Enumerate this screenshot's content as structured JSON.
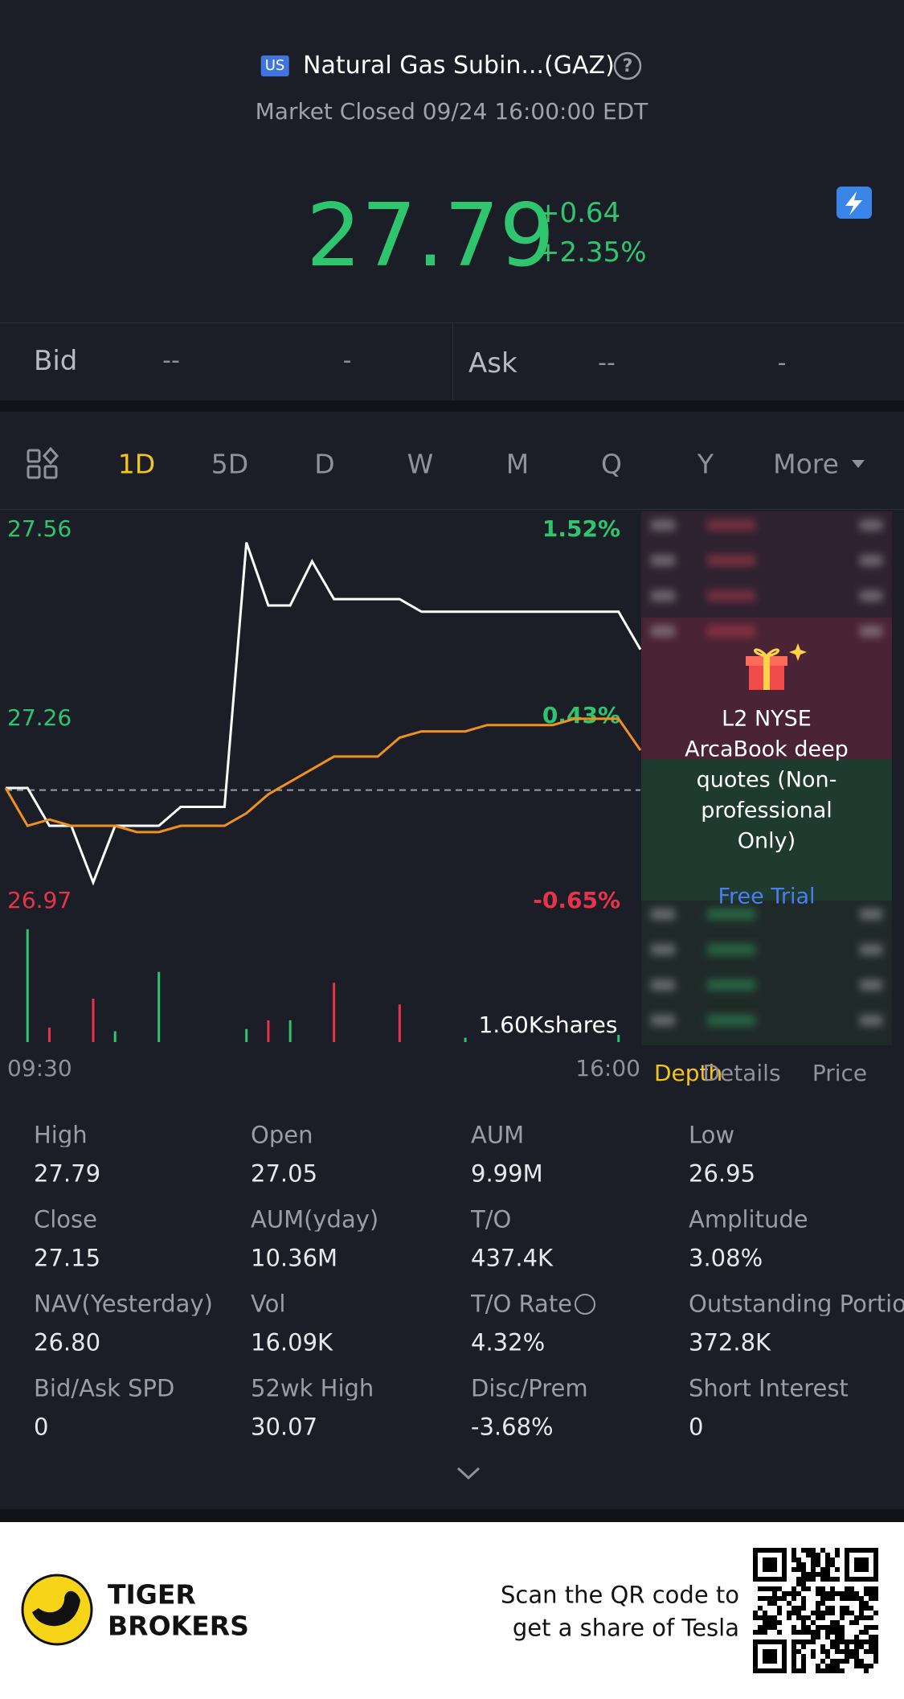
{
  "header": {
    "badge": "US",
    "title": "Natural Gas Subin...(GAZ)",
    "help": "?",
    "status": "Market Closed 09/24 16:00:00 EDT"
  },
  "quote": {
    "price": "27.79",
    "change": "+0.64",
    "change_pct": "+2.35%"
  },
  "bid_ask": {
    "bid_label": "Bid",
    "bid_price": "--",
    "bid_size": "-",
    "ask_label": "Ask",
    "ask_price": "--",
    "ask_size": "-"
  },
  "periods": [
    "1D",
    "5D",
    "D",
    "W",
    "M",
    "Q",
    "Y",
    "More"
  ],
  "active_period": 0,
  "chart_data": {
    "type": "line",
    "x_labels": [
      "09:30",
      "16:00"
    ],
    "ylim": [
      26.97,
      27.56
    ],
    "yticks": [
      27.56,
      27.26,
      26.97
    ],
    "y2lim": [
      -0.65,
      1.52
    ],
    "y2ticks": [
      {
        "value": 1.52,
        "label": "1.52%"
      },
      {
        "value": 0.43,
        "label": "0.43%"
      },
      {
        "value": -0.65,
        "label": "-0.65%"
      }
    ],
    "series": [
      {
        "color": "#ffffff",
        "values": [
          27.15,
          27.15,
          27.09,
          27.09,
          27.0,
          27.09,
          27.09,
          27.09,
          27.12,
          27.12,
          27.12,
          27.54,
          27.44,
          27.44,
          27.51,
          27.45,
          27.45,
          27.45,
          27.45,
          27.43,
          27.43,
          27.43,
          27.43,
          27.43,
          27.43,
          27.43,
          27.43,
          27.43,
          27.43,
          27.37
        ]
      },
      {
        "color": "#f0901e",
        "values": [
          27.15,
          27.09,
          27.1,
          27.09,
          27.09,
          27.09,
          27.08,
          27.08,
          27.09,
          27.09,
          27.09,
          27.11,
          27.14,
          27.16,
          27.18,
          27.2,
          27.2,
          27.2,
          27.23,
          27.24,
          27.24,
          27.24,
          27.25,
          27.25,
          27.25,
          27.25,
          27.26,
          27.26,
          27.26,
          27.21
        ]
      }
    ],
    "volume": {
      "label": "1.60Kshares",
      "ylim": [
        0,
        1.6
      ],
      "values": [
        null,
        1.56,
        0.2,
        null,
        0.6,
        0.15,
        null,
        0.97,
        null,
        null,
        null,
        0.18,
        0.3,
        0.3,
        null,
        0.82,
        null,
        null,
        0.52,
        null,
        null,
        0.06,
        null,
        null,
        null,
        null,
        null,
        null,
        0.1,
        null
      ],
      "colors": [
        "#2fc56f",
        "#2fc56f",
        "#e8334a",
        "#2fc56f",
        "#e8334a",
        "#2fc56f",
        "#2fc56f",
        "#2fc56f",
        "#2fc56f",
        "#2fc56f",
        "#2fc56f",
        "#2fc56f",
        "#e8334a",
        "#2fc56f",
        "#2fc56f",
        "#e8334a",
        "#2fc56f",
        "#2fc56f",
        "#e8334a",
        "#2fc56f",
        "#2fc56f",
        "#2fc56f",
        "#2fc56f",
        "#2fc56f",
        "#2fc56f",
        "#2fc56f",
        "#2fc56f",
        "#2fc56f",
        "#2fc56f",
        "#2fc56f"
      ]
    }
  },
  "promo": {
    "lines": [
      "L2 NYSE",
      "ArcaBook deep",
      "quotes (Non-",
      "professional",
      "Only)"
    ],
    "action": "Free Trial"
  },
  "panel_tabs": [
    "Depth",
    "Details",
    "Price"
  ],
  "stats": [
    {
      "label": "High",
      "value": "27.79"
    },
    {
      "label": "Open",
      "value": "27.05"
    },
    {
      "label": "AUM",
      "value": "9.99M"
    },
    {
      "label": "Low",
      "value": "26.95"
    },
    {
      "label": "Close",
      "value": "27.15"
    },
    {
      "label": "AUM(yday)",
      "value": "10.36M"
    },
    {
      "label": "T/O",
      "value": "437.4K"
    },
    {
      "label": "Amplitude",
      "value": "3.08%"
    },
    {
      "label": "NAV(Yesterday)",
      "value": "26.80"
    },
    {
      "label": "Vol",
      "value": "16.09K"
    },
    {
      "label": "T/O Rate",
      "value": "4.32%"
    },
    {
      "label": "Outstanding Portion",
      "value": "372.8K"
    },
    {
      "label": "Bid/Ask SPD",
      "value": "0"
    },
    {
      "label": "52wk High",
      "value": "30.07"
    },
    {
      "label": "Disc/Prem",
      "value": "-3.68%"
    },
    {
      "label": "Short Interest",
      "value": "0"
    }
  ],
  "footer": {
    "brand": [
      "TIGER",
      "BROKERS"
    ],
    "text": [
      "Scan the QR code to",
      "get a share of Tesla"
    ]
  }
}
